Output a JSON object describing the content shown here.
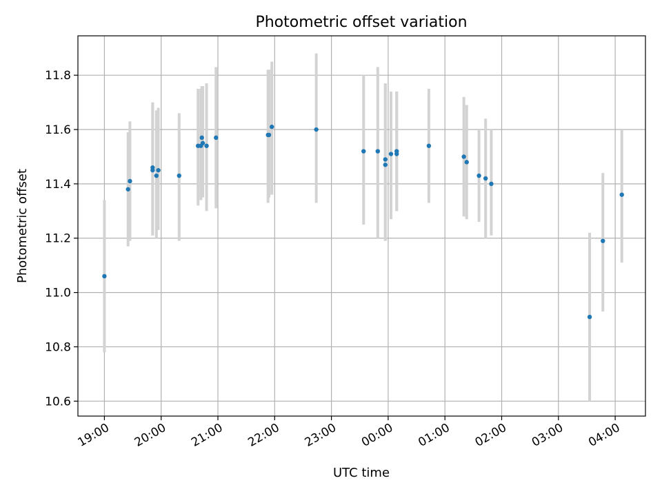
{
  "chart_data": {
    "type": "scatter",
    "title": "Photometric offset variation",
    "xlabel": "UTC time",
    "ylabel": "Photometric offset",
    "x_unit": "UTC time (hh:mm, 19:00 on first night through ~04:30 next morning)",
    "xlim": [
      "18:32",
      "04:32"
    ],
    "ylim": [
      10.545,
      11.945
    ],
    "grid": true,
    "x_ticks": [
      "19:00",
      "20:00",
      "21:00",
      "22:00",
      "23:00",
      "00:00",
      "01:00",
      "02:00",
      "03:00",
      "04:00"
    ],
    "y_ticks": [
      10.6,
      10.8,
      11.0,
      11.2,
      11.4,
      11.6,
      11.8
    ],
    "marker_color": "#1f77b4",
    "errorbar_color": "#d3d3d3",
    "series": [
      {
        "points": [
          {
            "t": "19:00",
            "y": 11.06,
            "lo": 10.78,
            "hi": 11.34
          },
          {
            "t": "19:25",
            "y": 11.38,
            "lo": 11.17,
            "hi": 11.59
          },
          {
            "t": "19:27",
            "y": 11.41,
            "lo": 11.19,
            "hi": 11.63
          },
          {
            "t": "19:51",
            "y": 11.46,
            "lo": 11.21,
            "hi": 11.7
          },
          {
            "t": "19:51",
            "y": 11.45,
            "lo": 11.21,
            "hi": 11.7
          },
          {
            "t": "19:55",
            "y": 11.43,
            "lo": 11.2,
            "hi": 11.67
          },
          {
            "t": "19:57",
            "y": 11.45,
            "lo": 11.23,
            "hi": 11.68
          },
          {
            "t": "20:19",
            "y": 11.43,
            "lo": 11.19,
            "hi": 11.66
          },
          {
            "t": "20:39",
            "y": 11.54,
            "lo": 11.32,
            "hi": 11.75
          },
          {
            "t": "20:42",
            "y": 11.54,
            "lo": 11.34,
            "hi": 11.75
          },
          {
            "t": "20:43",
            "y": 11.57,
            "lo": 11.38,
            "hi": 11.76
          },
          {
            "t": "20:44",
            "y": 11.55,
            "lo": 11.35,
            "hi": 11.76
          },
          {
            "t": "20:48",
            "y": 11.54,
            "lo": 11.3,
            "hi": 11.77
          },
          {
            "t": "20:58",
            "y": 11.57,
            "lo": 11.31,
            "hi": 11.83
          },
          {
            "t": "21:53",
            "y": 11.58,
            "lo": 11.33,
            "hi": 11.82
          },
          {
            "t": "21:54",
            "y": 11.58,
            "lo": 11.35,
            "hi": 11.82
          },
          {
            "t": "21:57",
            "y": 11.61,
            "lo": 11.36,
            "hi": 11.85
          },
          {
            "t": "22:44",
            "y": 11.6,
            "lo": 11.33,
            "hi": 11.88
          },
          {
            "t": "23:34",
            "y": 11.52,
            "lo": 11.25,
            "hi": 11.8
          },
          {
            "t": "23:49",
            "y": 11.52,
            "lo": 11.2,
            "hi": 11.83
          },
          {
            "t": "23:57",
            "y": 11.49,
            "lo": 11.19,
            "hi": 11.77
          },
          {
            "t": "23:57",
            "y": 11.47,
            "lo": 11.19,
            "hi": 11.77
          },
          {
            "t": "00:03",
            "y": 11.51,
            "lo": 11.27,
            "hi": 11.74
          },
          {
            "t": "00:09",
            "y": 11.51,
            "lo": 11.3,
            "hi": 11.74
          },
          {
            "t": "00:09",
            "y": 11.52,
            "lo": 11.3,
            "hi": 11.74
          },
          {
            "t": "00:43",
            "y": 11.54,
            "lo": 11.33,
            "hi": 11.75
          },
          {
            "t": "01:20",
            "y": 11.5,
            "lo": 11.28,
            "hi": 11.72
          },
          {
            "t": "01:23",
            "y": 11.48,
            "lo": 11.27,
            "hi": 11.69
          },
          {
            "t": "01:36",
            "y": 11.43,
            "lo": 11.26,
            "hi": 11.6
          },
          {
            "t": "01:43",
            "y": 11.42,
            "lo": 11.2,
            "hi": 11.64
          },
          {
            "t": "01:49",
            "y": 11.4,
            "lo": 11.21,
            "hi": 11.6
          },
          {
            "t": "03:33",
            "y": 10.91,
            "lo": 10.6,
            "hi": 11.22
          },
          {
            "t": "03:47",
            "y": 11.19,
            "lo": 10.93,
            "hi": 11.44
          },
          {
            "t": "04:07",
            "y": 11.36,
            "lo": 11.11,
            "hi": 11.6
          }
        ]
      }
    ]
  }
}
